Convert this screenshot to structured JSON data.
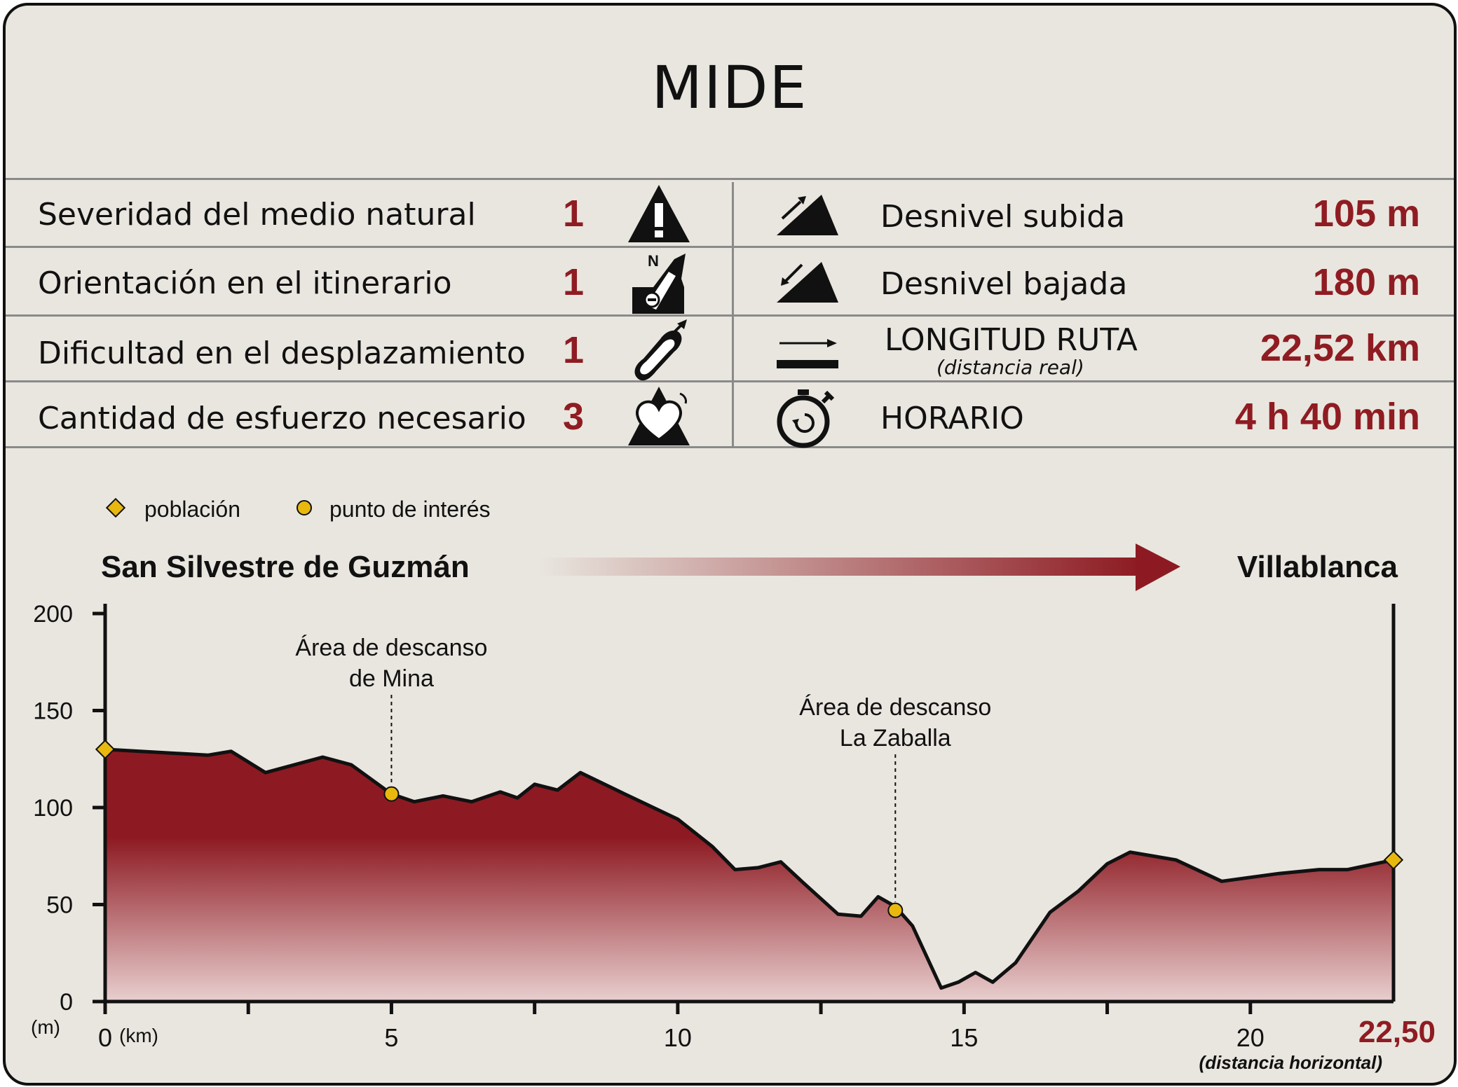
{
  "header": {
    "title": "MIDE"
  },
  "mide_rows": [
    {
      "label": "Severidad del medio natural",
      "score": "1",
      "icon": "warning-triangle-icon"
    },
    {
      "label": "Orientación en el itinerario",
      "score": "1",
      "icon": "compass-orientation-icon"
    },
    {
      "label": "Dificultad en el desplazamiento",
      "score": "1",
      "icon": "footprint-icon"
    },
    {
      "label": "Cantidad de esfuerzo necesario",
      "score": "3",
      "icon": "heart-effort-icon"
    }
  ],
  "route_stats": [
    {
      "label": "Desnivel subida",
      "value": "105 m",
      "icon": "ascent-icon"
    },
    {
      "label": "Desnivel bajada",
      "value": "180 m",
      "icon": "descent-icon"
    },
    {
      "label": "LONGITUD RUTA",
      "sublabel": "(distancia real)",
      "value": "22,52 km",
      "icon": "distance-icon"
    },
    {
      "label": "HORARIO",
      "value": "4 h 40 min",
      "icon": "stopwatch-icon"
    }
  ],
  "legend": {
    "poblacion": "población",
    "punto_interes": "punto de interés"
  },
  "route": {
    "start": "San Silvestre de Guzmán",
    "end": "Villablanca"
  },
  "colors": {
    "accent": "#8f1c22",
    "marker": "#e8b80f",
    "background": "#e9e6df"
  },
  "chart_data": {
    "type": "area",
    "xlabel": "(km)",
    "ylabel": "(m)",
    "xlim": [
      0,
      22.5
    ],
    "ylim": [
      0,
      200
    ],
    "x_ticks": [
      0,
      5,
      10,
      15,
      20
    ],
    "y_ticks": [
      0,
      50,
      100,
      150,
      200
    ],
    "x_end_label": "22,50",
    "x_end_note": "(distancia horizontal)",
    "series": [
      {
        "x": [
          0,
          1.8,
          2.2,
          2.8,
          3.8,
          4.3,
          5.0,
          5.4,
          5.9,
          6.4,
          6.9,
          7.2,
          7.5,
          7.9,
          8.3,
          9.0,
          10.0,
          10.6,
          11.0,
          11.4,
          11.8,
          12.2,
          12.8,
          13.2,
          13.5,
          13.8,
          14.1,
          14.6,
          14.9,
          15.2,
          15.5,
          15.9,
          16.5,
          17.0,
          17.5,
          17.9,
          18.7,
          19.5,
          20.5,
          21.2,
          21.7,
          22.5
        ],
        "y": [
          130,
          127,
          129,
          118,
          126,
          122,
          107,
          103,
          106,
          103,
          108,
          105,
          112,
          109,
          118,
          108,
          94,
          80,
          68,
          69,
          72,
          61,
          45,
          44,
          54,
          49,
          39,
          7,
          10,
          15,
          10,
          20,
          46,
          57,
          71,
          77,
          73,
          62,
          66,
          68,
          68,
          73
        ]
      }
    ],
    "markers": [
      {
        "type": "población",
        "x": 0,
        "y": 130
      },
      {
        "type": "población",
        "x": 22.5,
        "y": 73
      },
      {
        "type": "punto de interés",
        "x": 5.0,
        "y": 107
      },
      {
        "type": "punto de interés",
        "x": 13.8,
        "y": 47
      }
    ],
    "annotations": [
      {
        "x": 5.0,
        "line1": "Área de descanso",
        "line2": "de Mina"
      },
      {
        "x": 13.8,
        "line1": "Área de descanso",
        "line2": "La Zaballa"
      }
    ]
  }
}
